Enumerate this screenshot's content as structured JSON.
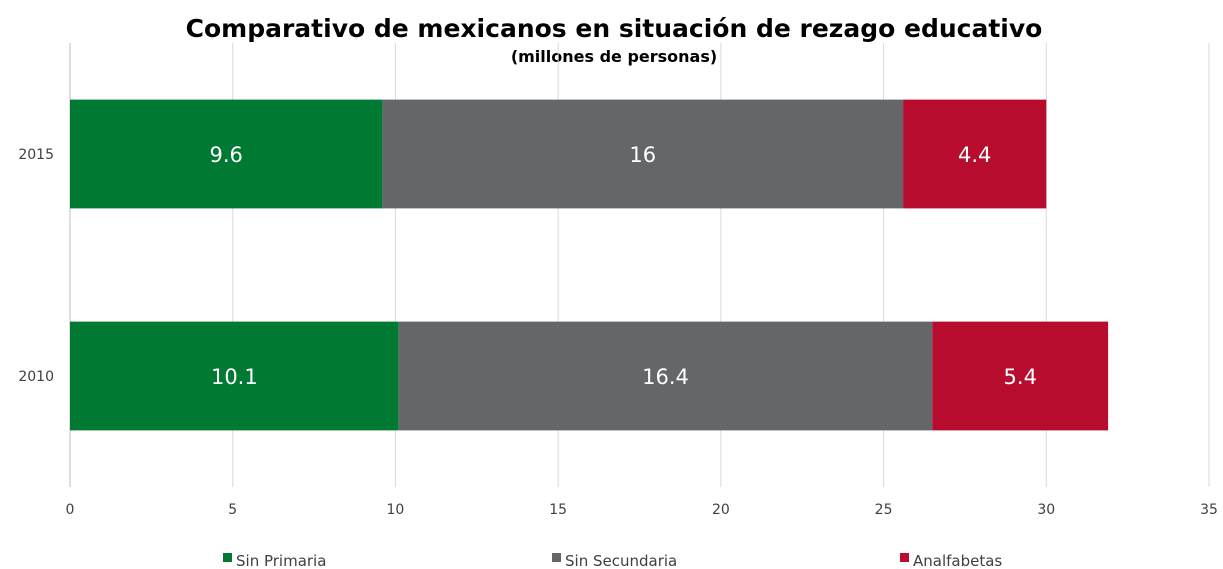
{
  "chart_data": {
    "type": "bar",
    "orientation": "horizontal",
    "stacked": true,
    "title": "Comparativo de mexicanos en situación de rezago educativo",
    "subtitle": "(millones de personas)",
    "categories": [
      "2015",
      "2010"
    ],
    "series": [
      {
        "name": "Sin Primaria",
        "values": [
          9.6,
          10.1
        ],
        "labels": [
          "9.6",
          "10.1"
        ],
        "color": "#007932"
      },
      {
        "name": "Sin Secundaria",
        "values": [
          16,
          16.4
        ],
        "labels": [
          "16",
          "16.4"
        ],
        "color": "#646669"
      },
      {
        "name": "Analfabetas",
        "values": [
          4.4,
          5.4
        ],
        "labels": [
          "4.4",
          "5.4"
        ],
        "color": "#B70C2E"
      }
    ],
    "xlim": [
      0,
      35
    ],
    "xticks": [
      "0",
      "5",
      "10",
      "15",
      "20",
      "25",
      "30",
      "35"
    ],
    "grid": true,
    "legend": "bottom"
  }
}
